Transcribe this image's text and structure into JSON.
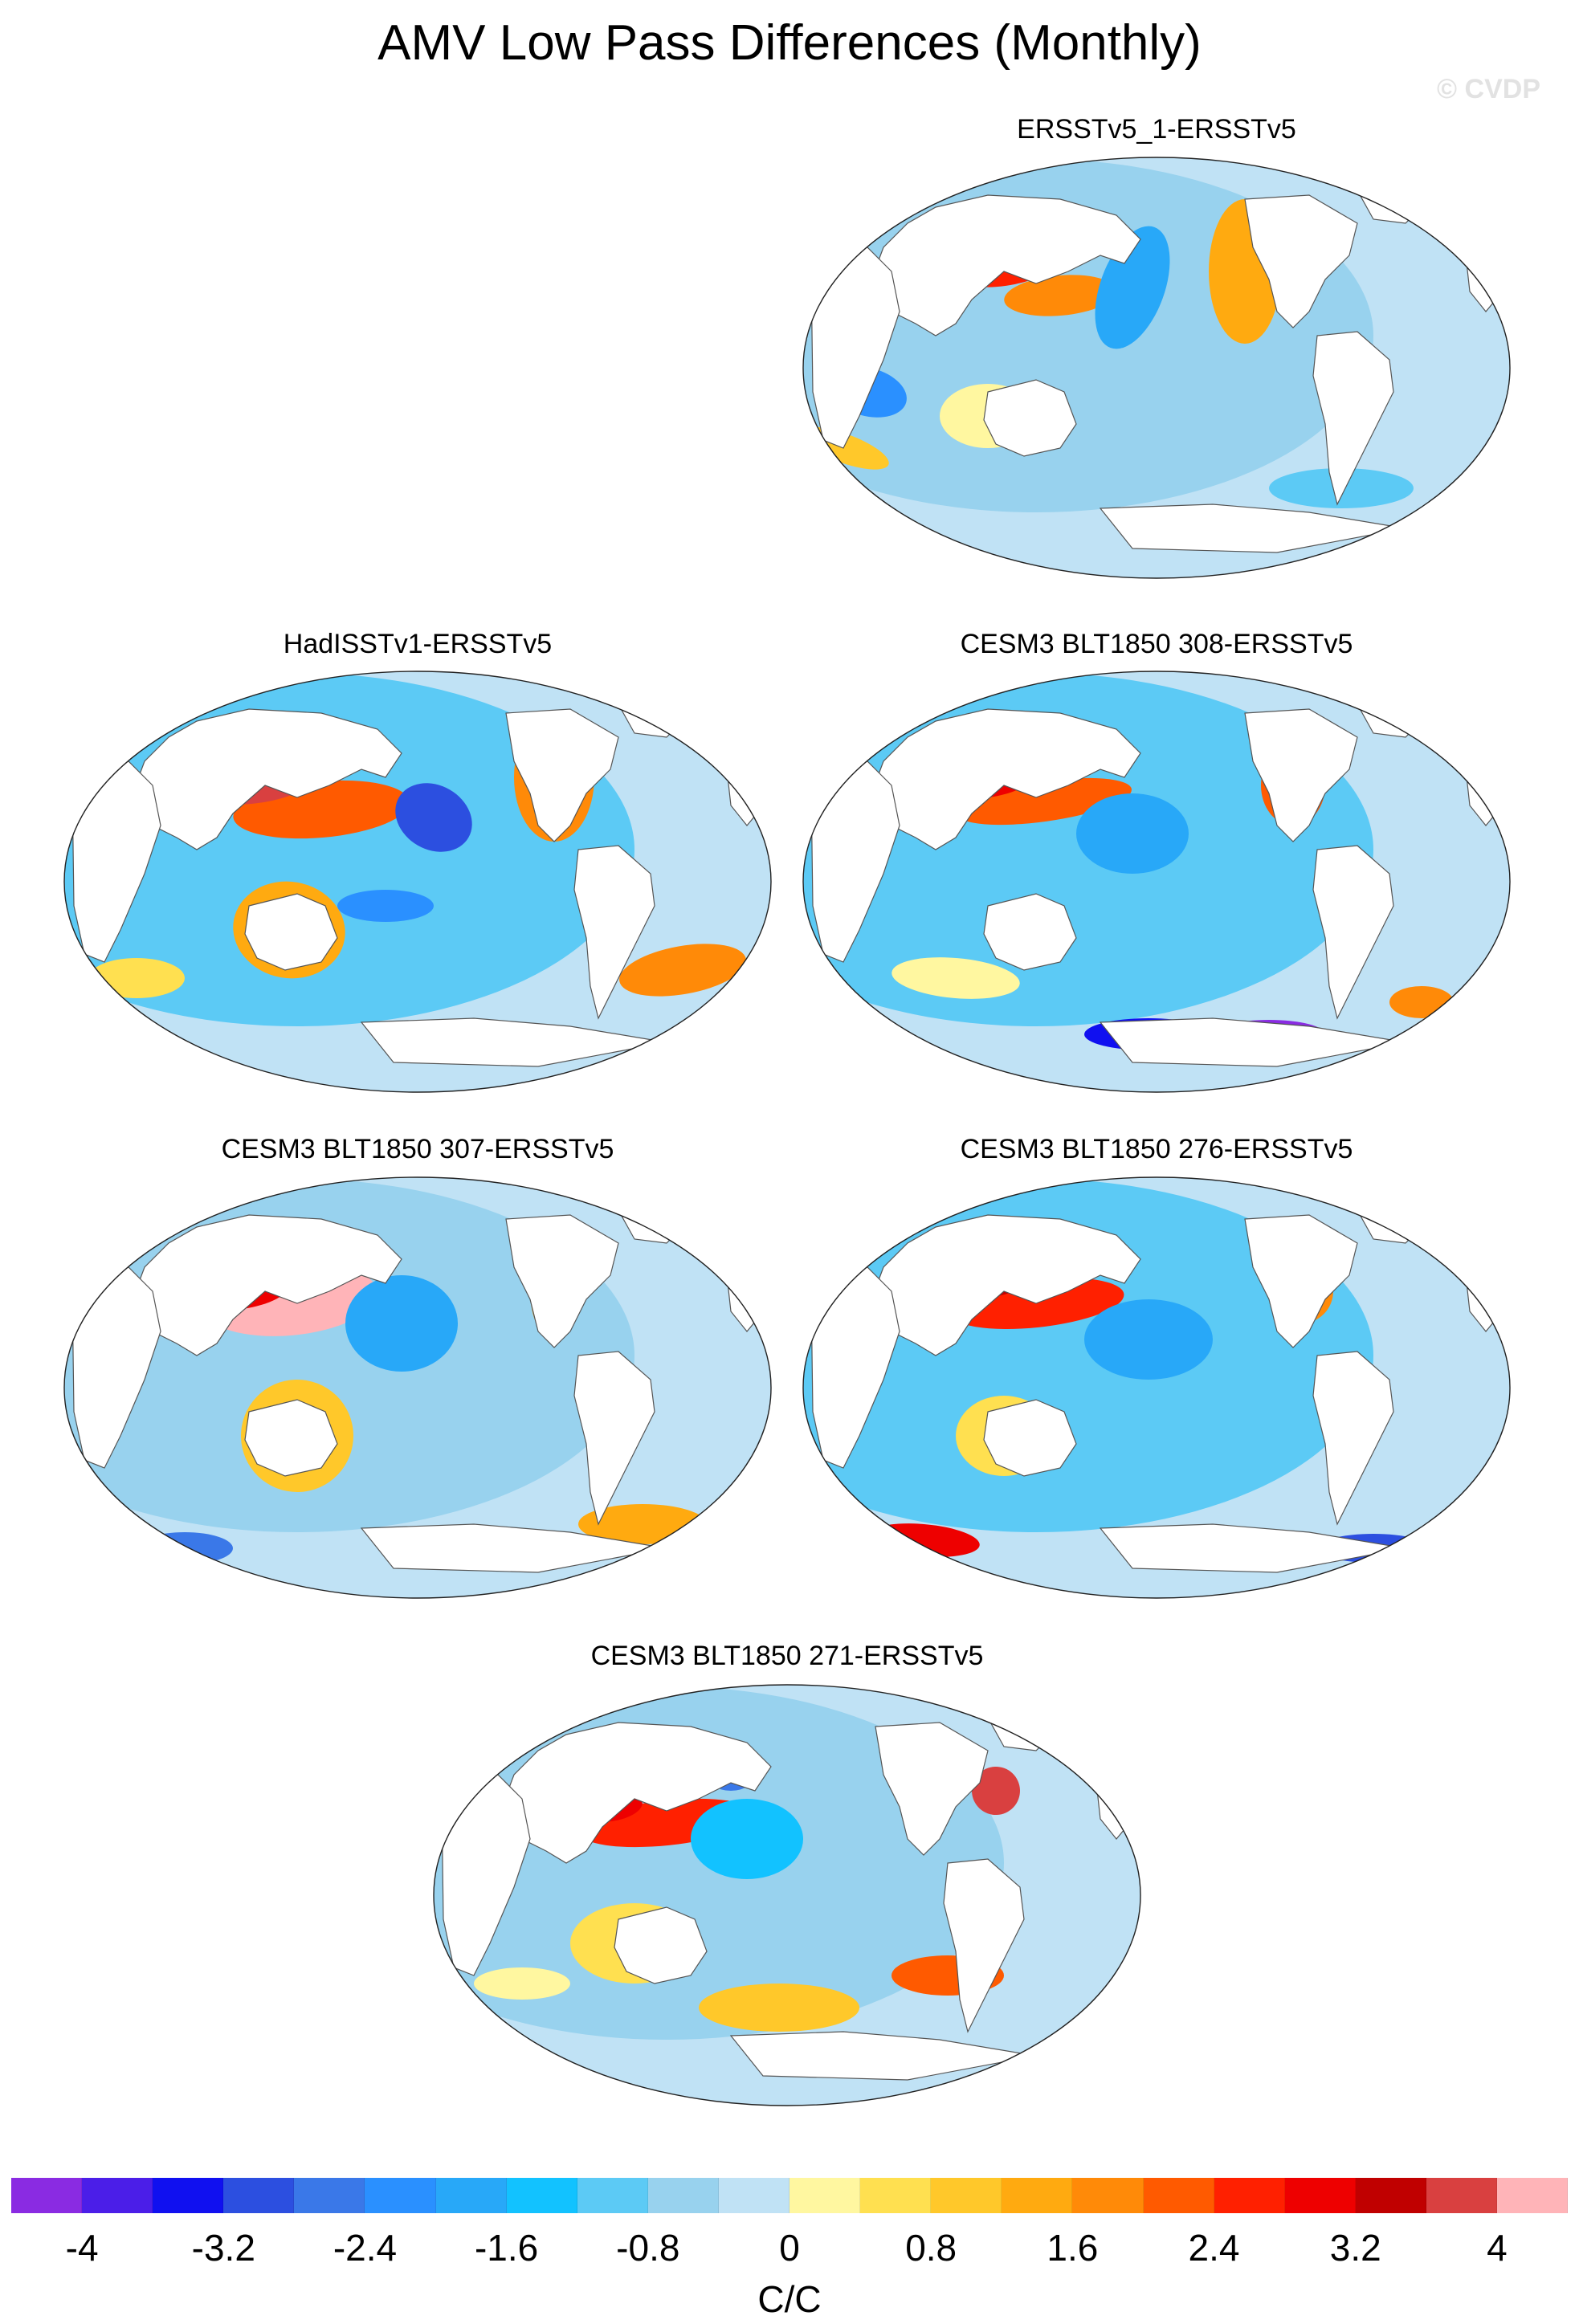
{
  "title": "AMV Low Pass Differences (Monthly)",
  "watermark": "© CVDP",
  "panels": [
    {
      "title": "ERSSTv5_1-ERSSTv5"
    },
    {
      "title": "HadISSTv1-ERSSTv5"
    },
    {
      "title": "CESM3 BLT1850 308-ERSSTv5"
    },
    {
      "title": "CESM3 BLT1850 307-ERSSTv5"
    },
    {
      "title": "CESM3 BLT1850 276-ERSSTv5"
    },
    {
      "title": "CESM3 BLT1850 271-ERSSTv5"
    }
  ],
  "colorbar": {
    "colors": [
      "#8a2be2",
      "#4b1ee8",
      "#1010f0",
      "#2c4fe0",
      "#3a78e8",
      "#2a90ff",
      "#28a8f8",
      "#12c2ff",
      "#5ccaf5",
      "#98d2ee",
      "#c0e2f5",
      "#fff7a0",
      "#ffe050",
      "#ffc82a",
      "#ffaa10",
      "#ff8a08",
      "#ff5a00",
      "#ff2000",
      "#ee0000",
      "#c00000",
      "#d94040",
      "#ffb4b8"
    ],
    "tick_labels": [
      "-4",
      "-3.2",
      "-2.4",
      "-1.6",
      "-0.8",
      "0",
      "0.8",
      "1.6",
      "2.4",
      "3.2",
      "4"
    ],
    "units": "C/C"
  }
}
